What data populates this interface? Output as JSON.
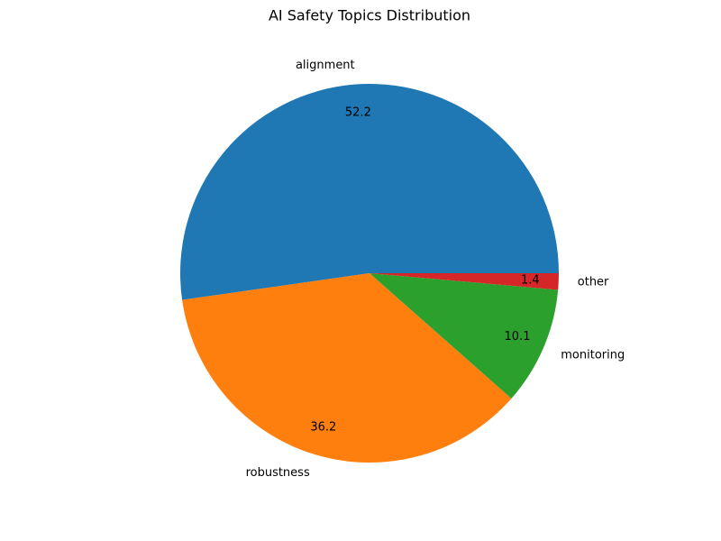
{
  "chart_data": {
    "type": "pie",
    "title": "AI Safety Topics Distribution",
    "categories": [
      "alignment",
      "robustness",
      "monitoring",
      "other"
    ],
    "values": [
      52.2,
      36.2,
      10.1,
      1.4
    ],
    "value_labels": [
      "52.2",
      "36.2",
      "10.1",
      "1.4"
    ],
    "colors": [
      "#1f77b4",
      "#ff7f0e",
      "#2ca02c",
      "#d62728"
    ],
    "start_angle_deg": 0,
    "direction": "counterclockwise",
    "legend": "none"
  }
}
